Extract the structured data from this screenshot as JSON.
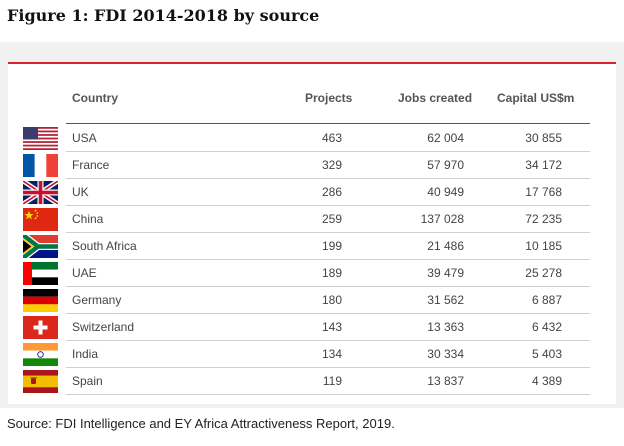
{
  "figure": {
    "title": "Figure 1: FDI 2014-2018 by source",
    "source": "Source: FDI Intelligence and EY Africa Attractiveness Report, 2019."
  },
  "colors": {
    "accent_rule": "#d9232e",
    "panel_bg": "#f1f1f1"
  },
  "table": {
    "headers": {
      "country": "Country",
      "projects": "Projects",
      "jobs": "Jobs created",
      "capital": "Capital US$m"
    },
    "rows": [
      {
        "country": "USA",
        "projects": "463",
        "jobs": "62 004",
        "capital": "30 855",
        "flag": "usa-flag-icon"
      },
      {
        "country": "France",
        "projects": "329",
        "jobs": "57 970",
        "capital": "34 172",
        "flag": "france-flag-icon"
      },
      {
        "country": "UK",
        "projects": "286",
        "jobs": "40 949",
        "capital": "17 768",
        "flag": "uk-flag-icon"
      },
      {
        "country": "China",
        "projects": "259",
        "jobs": "137 028",
        "capital": "72 235",
        "flag": "china-flag-icon"
      },
      {
        "country": "South Africa",
        "projects": "199",
        "jobs": "21 486",
        "capital": "10 185",
        "flag": "south-africa-flag-icon"
      },
      {
        "country": "UAE",
        "projects": "189",
        "jobs": "39 479",
        "capital": "25 278",
        "flag": "uae-flag-icon"
      },
      {
        "country": "Germany",
        "projects": "180",
        "jobs": "31 562",
        "capital": "6 887",
        "flag": "germany-flag-icon"
      },
      {
        "country": "Switzerland",
        "projects": "143",
        "jobs": "13 363",
        "capital": "6 432",
        "flag": "switzerland-flag-icon"
      },
      {
        "country": "India",
        "projects": "134",
        "jobs": "30 334",
        "capital": "5 403",
        "flag": "india-flag-icon"
      },
      {
        "country": "Spain",
        "projects": "119",
        "jobs": "13 837",
        "capital": "4 389",
        "flag": "spain-flag-icon"
      }
    ]
  }
}
